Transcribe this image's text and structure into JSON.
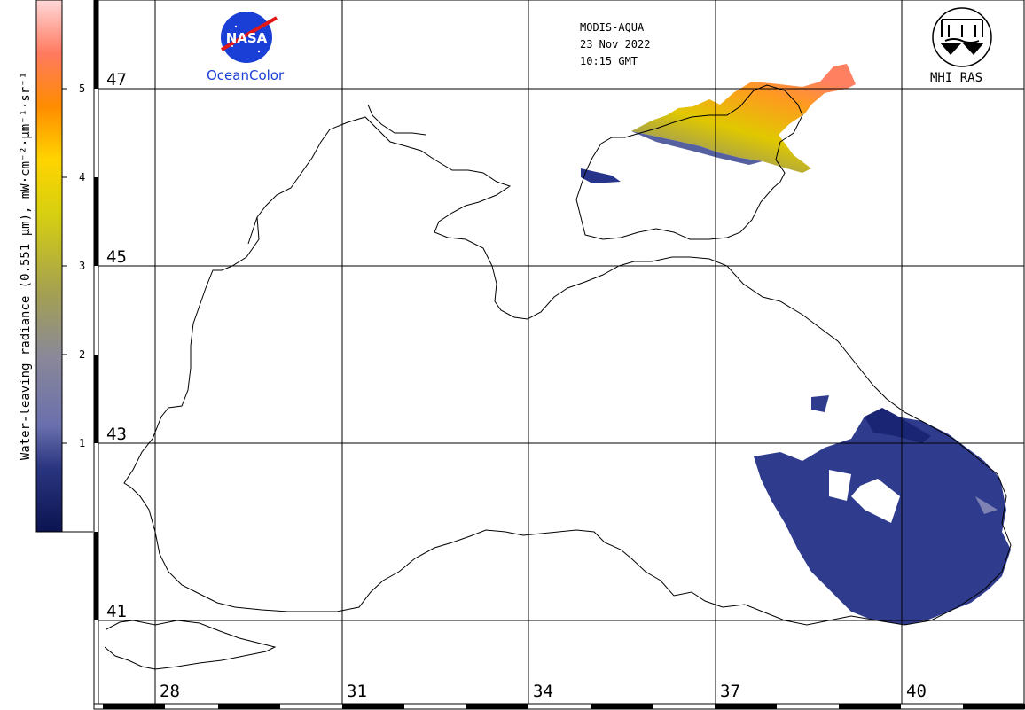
{
  "header": {
    "sensor": "MODIS-AQUA",
    "date": "23 Nov 2022",
    "time": "10:15 GMT"
  },
  "logos": {
    "nasa_text": "NASA",
    "oceancolor_text": "OceanColor",
    "mhi_text": "MHI RAS"
  },
  "colorbar": {
    "title": "Water-leaving radiance (0.551 µm), mW·cm⁻²·µm⁻¹·sr⁻¹",
    "ticks": [
      "1",
      "2",
      "3",
      "4",
      "5"
    ],
    "colors": [
      "#0b1450",
      "#3f4f9a",
      "#7c80b8",
      "#9e9a6a",
      "#c8c020",
      "#f0ee00",
      "#ffb000",
      "#ff7000",
      "#ff8a80",
      "#ffd0d0"
    ]
  },
  "grid": {
    "latitudes": [
      "47",
      "45",
      "43",
      "41"
    ],
    "longitudes": [
      "28",
      "31",
      "34",
      "37",
      "40"
    ]
  }
}
